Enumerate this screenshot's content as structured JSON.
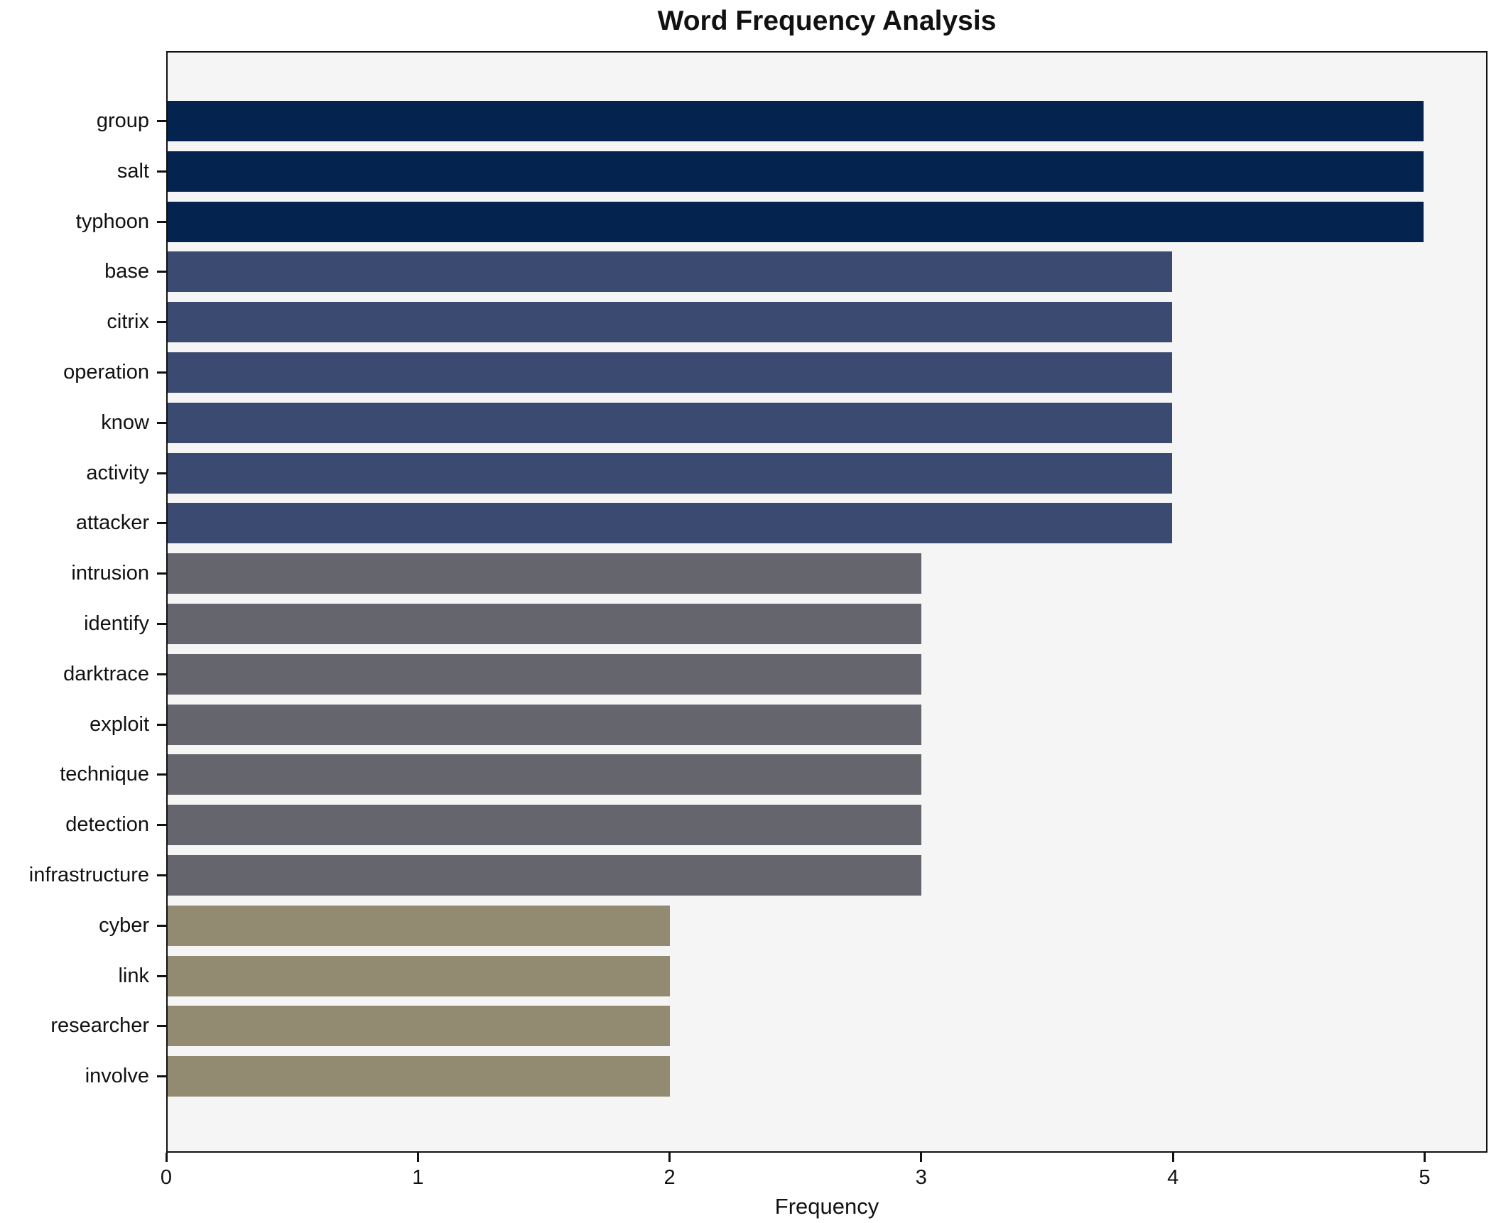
{
  "chart_data": {
    "type": "bar",
    "orientation": "horizontal",
    "title": "Word Frequency Analysis",
    "xlabel": "Frequency",
    "ylabel": "",
    "categories": [
      "group",
      "salt",
      "typhoon",
      "base",
      "citrix",
      "operation",
      "know",
      "activity",
      "attacker",
      "intrusion",
      "identify",
      "darktrace",
      "exploit",
      "technique",
      "detection",
      "infrastructure",
      "cyber",
      "link",
      "researcher",
      "involve"
    ],
    "values": [
      5,
      5,
      5,
      4,
      4,
      4,
      4,
      4,
      4,
      3,
      3,
      3,
      3,
      3,
      3,
      3,
      2,
      2,
      2,
      2
    ],
    "xticks": [
      0,
      1,
      2,
      3,
      4,
      5
    ],
    "xlim": [
      0,
      5.25
    ],
    "grid": false,
    "legend": null,
    "value_colors": {
      "5": "#04234f",
      "4": "#3a4a71",
      "3": "#65656d",
      "2": "#938b71"
    },
    "plot_bg": "#f5f5f6",
    "figure_bg": "#ffffff",
    "spine_color": "#111111",
    "text_color": "#111111"
  }
}
